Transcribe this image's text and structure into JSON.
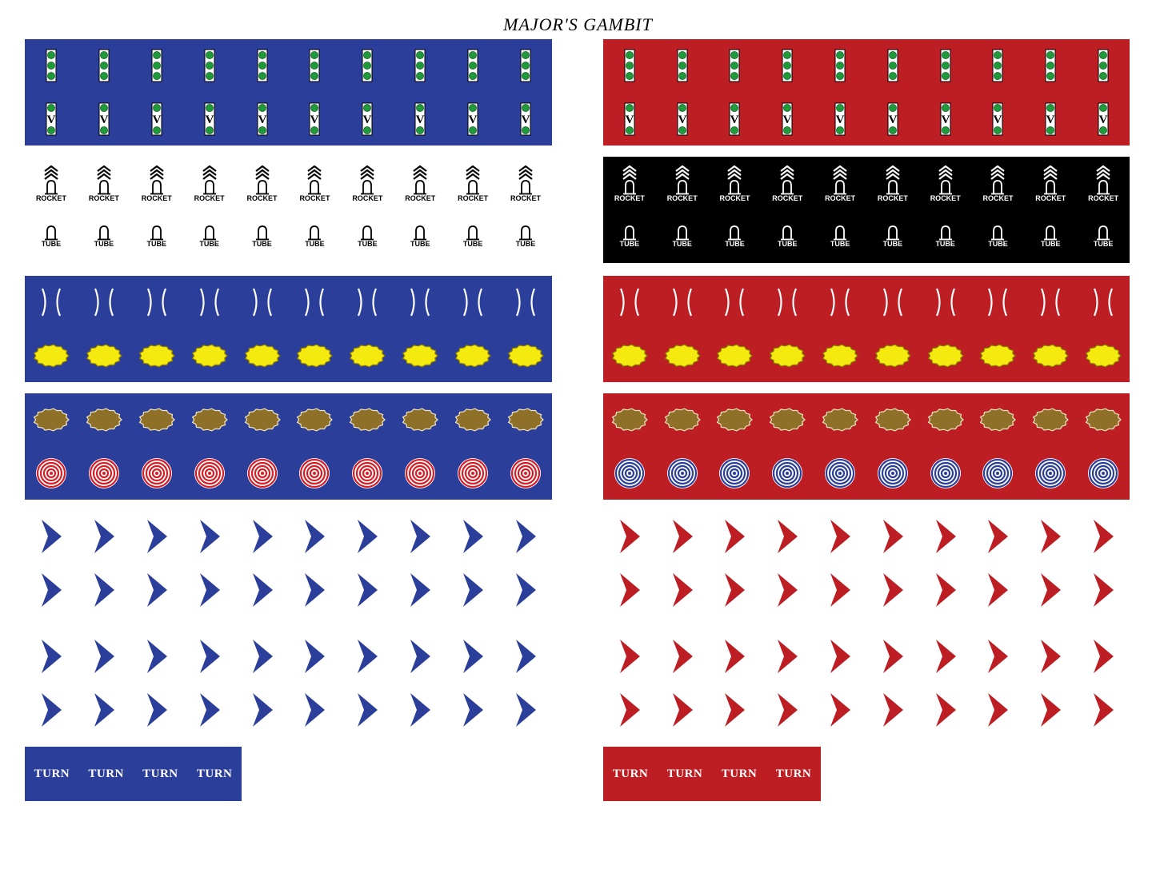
{
  "title": "MAJOR'S GAMBIT",
  "colors": {
    "blue": "#2b3f9a",
    "red": "#bd1e24",
    "black": "#000000",
    "green": "#1f9a3a",
    "yellow": "#f5ea10",
    "brown": "#8f7028"
  },
  "counter_labels": {
    "rocket": "ROCKET",
    "tube": "TUBE",
    "turn": "TURN",
    "veteran": "V"
  },
  "sides": [
    {
      "name": "blue-side",
      "band_color": "blue",
      "counters_per_row": 10,
      "rows": [
        "three-dot-unit",
        "veteran-unit",
        "rocket",
        "tube",
        "bracket",
        "yellow-blast",
        "brown-blast",
        "target",
        "chevron",
        "chevron",
        "chevron",
        "chevron"
      ],
      "target_ring_color": "red",
      "turn_count": 4
    },
    {
      "name": "red-side",
      "band_color": "red",
      "counters_per_row": 10,
      "rows": [
        "three-dot-unit",
        "veteran-unit",
        "rocket",
        "tube",
        "bracket",
        "yellow-blast",
        "brown-blast",
        "target",
        "chevron",
        "chevron",
        "chevron",
        "chevron"
      ],
      "target_ring_color": "blue",
      "turn_count": 4
    }
  ]
}
